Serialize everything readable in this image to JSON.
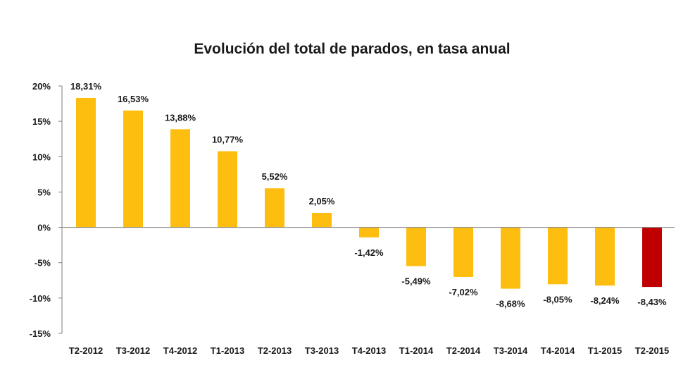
{
  "chart_data": {
    "type": "bar",
    "title": "Evolución del total de parados, en tasa anual",
    "categories": [
      "T2-2012",
      "T3-2012",
      "T4-2012",
      "T1-2013",
      "T2-2013",
      "T3-2013",
      "T4-2013",
      "T1-2014",
      "T2-2014",
      "T3-2014",
      "T4-2014",
      "T1-2015",
      "T2-2015"
    ],
    "values": [
      18.31,
      16.53,
      13.88,
      10.77,
      5.52,
      2.05,
      -1.42,
      -5.49,
      -7.02,
      -8.68,
      -8.05,
      -8.24,
      -8.43
    ],
    "data_labels": [
      "18,31%",
      "16,53%",
      "13,88%",
      "10,77%",
      "5,52%",
      "2,05%",
      "-1,42%",
      "-5,49%",
      "-7,02%",
      "-8,68%",
      "-8,05%",
      "-8,24%",
      "-8,43%"
    ],
    "ylim": [
      -15,
      20
    ],
    "yticks": [
      20,
      15,
      10,
      5,
      0,
      -5,
      -10,
      -15
    ],
    "ytick_labels": [
      "20%",
      "15%",
      "10%",
      "5%",
      "0%",
      "-5%",
      "-10%",
      "-15%"
    ],
    "xlabel": "",
    "ylabel": "",
    "grid": false,
    "legend": "none",
    "colors": {
      "bar": "#FDBE0F",
      "highlight_bar": "#C00000",
      "axis": "#7f7f7f",
      "text": "#1a1a1a"
    },
    "highlight_index": 12
  }
}
